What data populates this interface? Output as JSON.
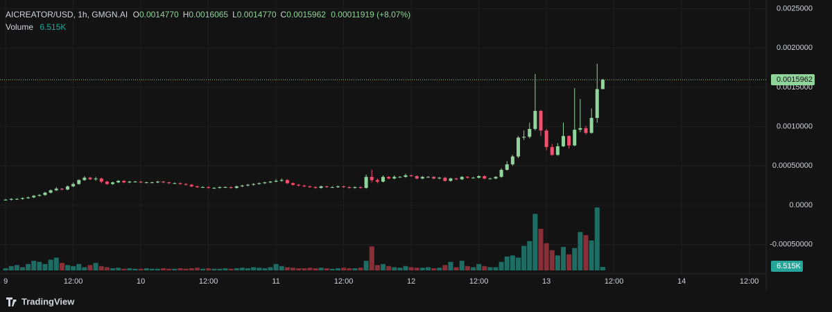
{
  "chart_data": {
    "type": "candlestick",
    "header": {
      "symbol": "AICREATOR/USD, 1h, GMGN.AI",
      "fields": [
        {
          "prefix": "O",
          "value": "0.0014770"
        },
        {
          "prefix": "H",
          "value": "0.0016065"
        },
        {
          "prefix": "L",
          "value": "0.0014770"
        },
        {
          "prefix": "C",
          "value": "0.0015962"
        }
      ],
      "change": "0.00011919 (+8.07%)",
      "volume_label": "Volume",
      "volume_value": "6.515K"
    },
    "up_color": "#8fd49a",
    "down_color": "#f0506e",
    "volume_up_color": "#1e6d64",
    "volume_down_color": "#8a2f38",
    "x": [
      0,
      1,
      2,
      3,
      4,
      5,
      6,
      7,
      8,
      9,
      10,
      11,
      12,
      13,
      14,
      15,
      16,
      17,
      18,
      19,
      20,
      21,
      22,
      23,
      24,
      25,
      26,
      27,
      28,
      29,
      30,
      31,
      32,
      33,
      34,
      35,
      36,
      37,
      38,
      39,
      40,
      41,
      42,
      43,
      44,
      45,
      46,
      47,
      48,
      49,
      50,
      51,
      52,
      53,
      54,
      55,
      56,
      57,
      58,
      59,
      60,
      61,
      62,
      63,
      64,
      65,
      66,
      67,
      68,
      69,
      70,
      71,
      72,
      73,
      74,
      75,
      76,
      77,
      78,
      79,
      80,
      81,
      82,
      83,
      84,
      85,
      86,
      87,
      88,
      89,
      90,
      91,
      92,
      93,
      94,
      95,
      96,
      97,
      98,
      99,
      100,
      101,
      102,
      103,
      104,
      105,
      106
    ],
    "open": [
      7e-05,
      7e-05,
      8e-05,
      8e-05,
      9e-05,
      0.0001,
      0.00012,
      0.00013,
      0.00016,
      0.00019,
      0.00021,
      0.0002,
      0.00024,
      0.00027,
      0.00032,
      0.00035,
      0.00033,
      0.00034,
      0.0003,
      0.00027,
      0.00029,
      0.00031,
      0.00029,
      0.0003,
      0.0003,
      0.00029,
      0.00029,
      0.00029,
      0.0003,
      0.00029,
      0.00028,
      0.00028,
      0.00027,
      0.00026,
      0.00024,
      0.00023,
      0.00023,
      0.00022,
      0.00022,
      0.00023,
      0.00023,
      0.00022,
      0.00024,
      0.00025,
      0.00026,
      0.00027,
      0.00028,
      0.00029,
      0.0003,
      0.00031,
      0.00032,
      0.00028,
      0.00026,
      0.00025,
      0.00024,
      0.00023,
      0.00022,
      0.00024,
      0.00023,
      0.00023,
      0.00024,
      0.00023,
      0.00022,
      0.00023,
      0.00022,
      0.00036,
      0.00032,
      0.0003,
      0.00036,
      0.00034,
      0.00036,
      0.00036,
      0.00038,
      0.00037,
      0.00034,
      0.00036,
      0.00036,
      0.00034,
      0.00035,
      0.00031,
      0.00034,
      0.00033,
      0.00036,
      0.00035,
      0.00035,
      0.00037,
      0.00034,
      0.00034,
      0.00036,
      0.00045,
      0.00052,
      0.00062,
      0.00086,
      0.00087,
      0.00097,
      0.0012,
      0.00095,
      0.00074,
      0.00064,
      0.00075,
      0.00088,
      0.00076,
      0.00096,
      0.00098,
      0.00092,
      0.00111,
      0.001477
    ],
    "high": [
      8e-05,
      9e-05,
      9e-05,
      0.0001,
      0.00011,
      0.00013,
      0.00014,
      0.00017,
      0.0002,
      0.00023,
      0.00022,
      0.00025,
      0.00029,
      0.00033,
      0.00037,
      0.00036,
      0.00036,
      0.00035,
      0.00031,
      0.0003,
      0.00032,
      0.00032,
      0.00031,
      0.00031,
      0.00031,
      0.0003,
      0.0003,
      0.00031,
      0.00031,
      0.0003,
      0.00029,
      0.00029,
      0.00028,
      0.00027,
      0.00025,
      0.00024,
      0.00024,
      0.00023,
      0.00024,
      0.00024,
      0.00024,
      0.00025,
      0.00026,
      0.00027,
      0.00028,
      0.00029,
      0.0003,
      0.00031,
      0.00033,
      0.00034,
      0.00033,
      0.00029,
      0.00027,
      0.00026,
      0.00025,
      0.00024,
      0.00025,
      0.00025,
      0.00024,
      0.00025,
      0.00025,
      0.00024,
      0.00024,
      0.00024,
      0.00039,
      0.00045,
      0.00034,
      0.00038,
      0.00037,
      0.00038,
      0.00037,
      0.0004,
      0.00039,
      0.00038,
      0.00037,
      0.00037,
      0.00037,
      0.00036,
      0.00036,
      0.00035,
      0.00035,
      0.00037,
      0.00037,
      0.00036,
      0.00038,
      0.00038,
      0.00035,
      0.00037,
      0.00047,
      0.00056,
      0.00064,
      0.00088,
      0.00095,
      0.00105,
      0.00167,
      0.00121,
      0.00097,
      0.00078,
      0.00079,
      0.00105,
      0.00089,
      0.00149,
      0.00135,
      0.00101,
      0.00123,
      0.0018,
      0.0016065
    ],
    "low": [
      6e-05,
      6e-05,
      7e-05,
      7e-05,
      8e-05,
      9e-05,
      0.00011,
      0.00012,
      0.00015,
      0.00018,
      0.00019,
      0.00019,
      0.00023,
      0.00026,
      0.00031,
      0.00032,
      0.00031,
      0.00028,
      0.00026,
      0.00026,
      0.00028,
      0.00028,
      0.00028,
      0.00029,
      0.00028,
      0.00028,
      0.00028,
      0.00028,
      0.00028,
      0.00027,
      0.00027,
      0.00026,
      0.00025,
      0.00023,
      0.00022,
      0.00022,
      0.00021,
      0.00021,
      0.00021,
      0.00022,
      0.00021,
      0.00021,
      0.00023,
      0.00024,
      0.00025,
      0.00026,
      0.00027,
      0.00028,
      0.00029,
      0.0003,
      0.00027,
      0.00025,
      0.00024,
      0.00023,
      0.00022,
      0.00021,
      0.00021,
      0.00022,
      0.00022,
      0.00022,
      0.00022,
      0.00021,
      0.00021,
      0.00021,
      0.00021,
      0.00029,
      0.00028,
      0.00029,
      0.00033,
      0.00033,
      0.00035,
      0.00035,
      0.00036,
      0.00033,
      0.00033,
      0.00035,
      0.00033,
      0.00033,
      0.0003,
      0.0003,
      0.00032,
      0.00032,
      0.00034,
      0.00034,
      0.00034,
      0.00033,
      0.00033,
      0.00033,
      0.00035,
      0.00044,
      0.0005,
      0.0006,
      0.00083,
      0.00085,
      0.00095,
      0.00088,
      0.0007,
      0.00063,
      0.00063,
      0.00074,
      0.00072,
      0.00075,
      0.00093,
      0.0009,
      0.00091,
      0.00105,
      0.001477
    ],
    "close": [
      7e-05,
      8e-05,
      8e-05,
      9e-05,
      0.0001,
      0.00012,
      0.00013,
      0.00016,
      0.00019,
      0.00021,
      0.0002,
      0.00024,
      0.00027,
      0.00032,
      0.00035,
      0.00033,
      0.00034,
      0.0003,
      0.00027,
      0.00029,
      0.00031,
      0.00029,
      0.0003,
      0.0003,
      0.00029,
      0.00029,
      0.00029,
      0.0003,
      0.00029,
      0.00028,
      0.00028,
      0.00027,
      0.00026,
      0.00024,
      0.00023,
      0.00023,
      0.00022,
      0.00022,
      0.00023,
      0.00023,
      0.00022,
      0.00024,
      0.00025,
      0.00026,
      0.00027,
      0.00028,
      0.00029,
      0.0003,
      0.00031,
      0.00032,
      0.00028,
      0.00026,
      0.00025,
      0.00024,
      0.00023,
      0.00022,
      0.00024,
      0.00023,
      0.00023,
      0.00024,
      0.00023,
      0.00022,
      0.00023,
      0.00022,
      0.00036,
      0.00032,
      0.0003,
      0.00036,
      0.00034,
      0.00036,
      0.00036,
      0.00038,
      0.00037,
      0.00034,
      0.00036,
      0.00036,
      0.00034,
      0.00035,
      0.00031,
      0.00034,
      0.00033,
      0.00036,
      0.00035,
      0.00035,
      0.00037,
      0.00034,
      0.00034,
      0.00036,
      0.00045,
      0.00052,
      0.00062,
      0.00086,
      0.00087,
      0.00097,
      0.0012,
      0.00095,
      0.00074,
      0.00064,
      0.00075,
      0.00088,
      0.00076,
      0.00096,
      0.00098,
      0.00092,
      0.00111,
      0.001477,
      0.0015962
    ],
    "volume": [
      4000,
      8000,
      10000,
      6000,
      12000,
      18000,
      16000,
      12000,
      20000,
      24000,
      14000,
      10000,
      8000,
      12000,
      6000,
      10000,
      14000,
      8000,
      6000,
      4000,
      5000,
      3000,
      4000,
      3000,
      3000,
      4000,
      3000,
      3000,
      4000,
      3000,
      3000,
      4000,
      3000,
      4000,
      5000,
      3000,
      4000,
      3000,
      3000,
      4000,
      3000,
      4000,
      5000,
      4000,
      6000,
      5000,
      4000,
      6000,
      12000,
      8000,
      6000,
      5000,
      4000,
      4000,
      5000,
      4000,
      5000,
      4000,
      3000,
      4000,
      5000,
      4000,
      4000,
      5000,
      18000,
      45000,
      10000,
      12000,
      8000,
      6000,
      5000,
      8000,
      6000,
      5000,
      5000,
      6000,
      4000,
      5000,
      10000,
      16000,
      6000,
      18000,
      8000,
      6000,
      12000,
      8000,
      6000,
      6000,
      16000,
      26000,
      28000,
      24000,
      46000,
      55000,
      106000,
      78000,
      51000,
      38000,
      28000,
      44000,
      30000,
      42000,
      72000,
      66000,
      56000,
      118000,
      6515
    ],
    "volume_lim": [
      0,
      130000
    ],
    "xlim": [
      -1,
      135
    ],
    "xticks": [
      {
        "value": 0,
        "label": "9"
      },
      {
        "value": 12,
        "label": "12:00"
      },
      {
        "value": 24,
        "label": "10"
      },
      {
        "value": 36,
        "label": "12:00"
      },
      {
        "value": 48,
        "label": "11"
      },
      {
        "value": 60,
        "label": "12:00"
      },
      {
        "value": 72,
        "label": "12"
      },
      {
        "value": 84,
        "label": "12:00"
      },
      {
        "value": 96,
        "label": "13"
      },
      {
        "value": 108,
        "label": "12:00"
      },
      {
        "value": 120,
        "label": "14"
      },
      {
        "value": 132,
        "label": "12:00"
      }
    ],
    "ylim": [
      -0.000873,
      0.00261
    ],
    "yticks": [
      {
        "value": 0.0025,
        "label": "0.0025000"
      },
      {
        "value": 0.002,
        "label": "0.0020000"
      },
      {
        "value": 0.0015,
        "label": "0.0015000"
      },
      {
        "value": 0.001,
        "label": "0.0010000"
      },
      {
        "value": 0.0005,
        "label": "0.00050000"
      },
      {
        "value": 0,
        "label": "0.0000"
      },
      {
        "value": -0.0005,
        "label": "-0.00050000"
      }
    ],
    "grid": true,
    "last_price_label": "0.0015962",
    "last_volume_label": "6.515K",
    "brand": "TradingView"
  }
}
